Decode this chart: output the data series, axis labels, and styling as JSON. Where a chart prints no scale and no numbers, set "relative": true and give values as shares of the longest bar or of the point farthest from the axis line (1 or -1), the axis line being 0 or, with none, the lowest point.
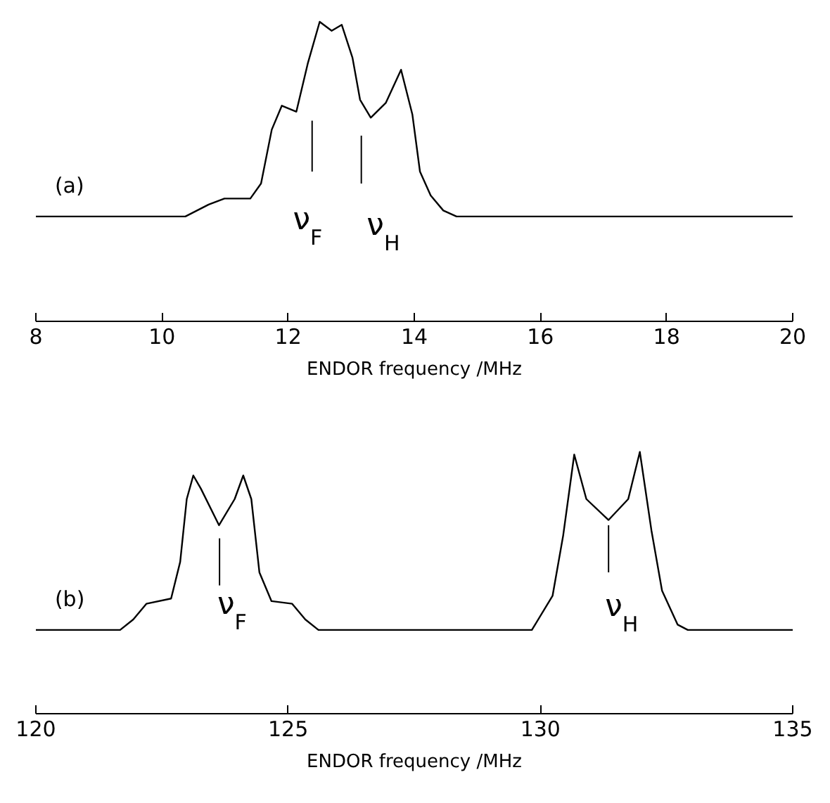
{
  "chart_data": [
    {
      "type": "line",
      "relative": true,
      "xlabel": "ENDOR frequency /MHz",
      "xlim": [
        8,
        20
      ],
      "xticks": [
        8,
        10,
        12,
        14,
        16,
        18,
        20
      ],
      "grid": false,
      "annotations": [
        "(a)"
      ],
      "ref_lines": [
        {
          "axis": "x",
          "value": 12.38,
          "label": "ν$_{F}$",
          "color": "#000000"
        },
        {
          "axis": "x",
          "value": 13.16,
          "label": "ν$_{H}$",
          "color": "#000000"
        }
      ],
      "series": [
        {
          "color": "#000000",
          "x": [
            8,
            10.37,
            10.74,
            10.99,
            11.4,
            11.57,
            11.74,
            11.9,
            12.13,
            12.31,
            12.5,
            12.69,
            12.85,
            13.02,
            13.14,
            13.31,
            13.55,
            13.79,
            13.97,
            14.09,
            14.26,
            14.46,
            14.67,
            20
          ],
          "values": [
            0.35,
            0.35,
            0.39,
            0.41,
            0.41,
            0.46,
            0.64,
            0.72,
            0.7,
            0.86,
            1,
            0.97,
            0.99,
            0.88,
            0.74,
            0.68,
            0.73,
            0.84,
            0.69,
            0.5,
            0.42,
            0.37,
            0.35,
            0.35
          ]
        }
      ]
    },
    {
      "type": "line",
      "relative": true,
      "xlabel": "ENDOR frequency /MHz",
      "xlim": [
        120,
        135
      ],
      "xticks": [
        120,
        125,
        130,
        135
      ],
      "grid": false,
      "annotations": [
        "(b)"
      ],
      "ref_lines": [
        {
          "axis": "x",
          "value": 123.64,
          "label": "ν$_{F}$",
          "color": "#000000"
        },
        {
          "axis": "x",
          "value": 131.35,
          "label": "ν$_{H}$",
          "color": "#000000"
        }
      ],
      "series": [
        {
          "color": "#000000",
          "x": [
            120,
            121.67,
            121.93,
            122.19,
            122.68,
            122.86,
            122.99,
            123.12,
            123.27,
            123.63,
            123.94,
            124.11,
            124.27,
            124.43,
            124.67,
            125.08,
            125.34,
            125.6,
            129.83,
            130.24,
            130.45,
            130.67,
            130.91,
            131.35,
            131.74,
            131.97,
            132.2,
            132.41,
            132.72,
            132.92,
            135
          ],
          "values": [
            0.32,
            0.32,
            0.36,
            0.42,
            0.44,
            0.58,
            0.82,
            0.91,
            0.86,
            0.72,
            0.82,
            0.91,
            0.82,
            0.54,
            0.43,
            0.42,
            0.36,
            0.32,
            0.32,
            0.45,
            0.68,
            0.99,
            0.82,
            0.74,
            0.82,
            1,
            0.7,
            0.47,
            0.34,
            0.32,
            0.32
          ]
        }
      ]
    }
  ]
}
